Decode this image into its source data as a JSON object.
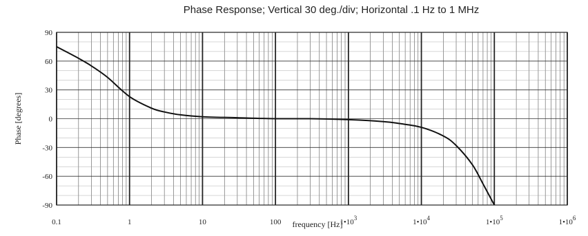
{
  "chart_data": {
    "type": "line",
    "title": "Phase Response; Vertical 30 deg./div; Horizontal .1 Hz to 1 MHz",
    "xlabel": "frequency [Hz]",
    "ylabel": "Phase [degrees]",
    "x_scale": "log",
    "xlim": [
      0.1,
      1000000
    ],
    "ylim": [
      -90,
      90
    ],
    "grid": true,
    "x_tick_labels": [
      {
        "base": "0.1",
        "exp": ""
      },
      {
        "base": "1",
        "exp": ""
      },
      {
        "base": "10",
        "exp": ""
      },
      {
        "base": "100",
        "exp": ""
      },
      {
        "base": "1•10",
        "exp": "3"
      },
      {
        "base": "1•10",
        "exp": "4"
      },
      {
        "base": "1•10",
        "exp": "5"
      },
      {
        "base": "1•10",
        "exp": "6"
      }
    ],
    "y_ticks": [
      "90",
      "60",
      "30",
      "0",
      "-30",
      "-60",
      "-90"
    ],
    "series": [
      {
        "x": [
          0.1,
          0.2,
          0.3,
          0.5,
          1,
          2,
          3,
          5,
          10,
          30,
          100,
          300,
          1000,
          3000,
          5000,
          10000,
          20000,
          30000,
          50000,
          70000,
          100000
        ],
        "y": [
          75,
          63,
          55,
          43,
          23,
          11,
          7,
          4,
          2,
          1,
          0,
          0,
          -1,
          -3,
          -5,
          -9,
          -18,
          -28,
          -48,
          -68,
          -90
        ]
      }
    ]
  }
}
